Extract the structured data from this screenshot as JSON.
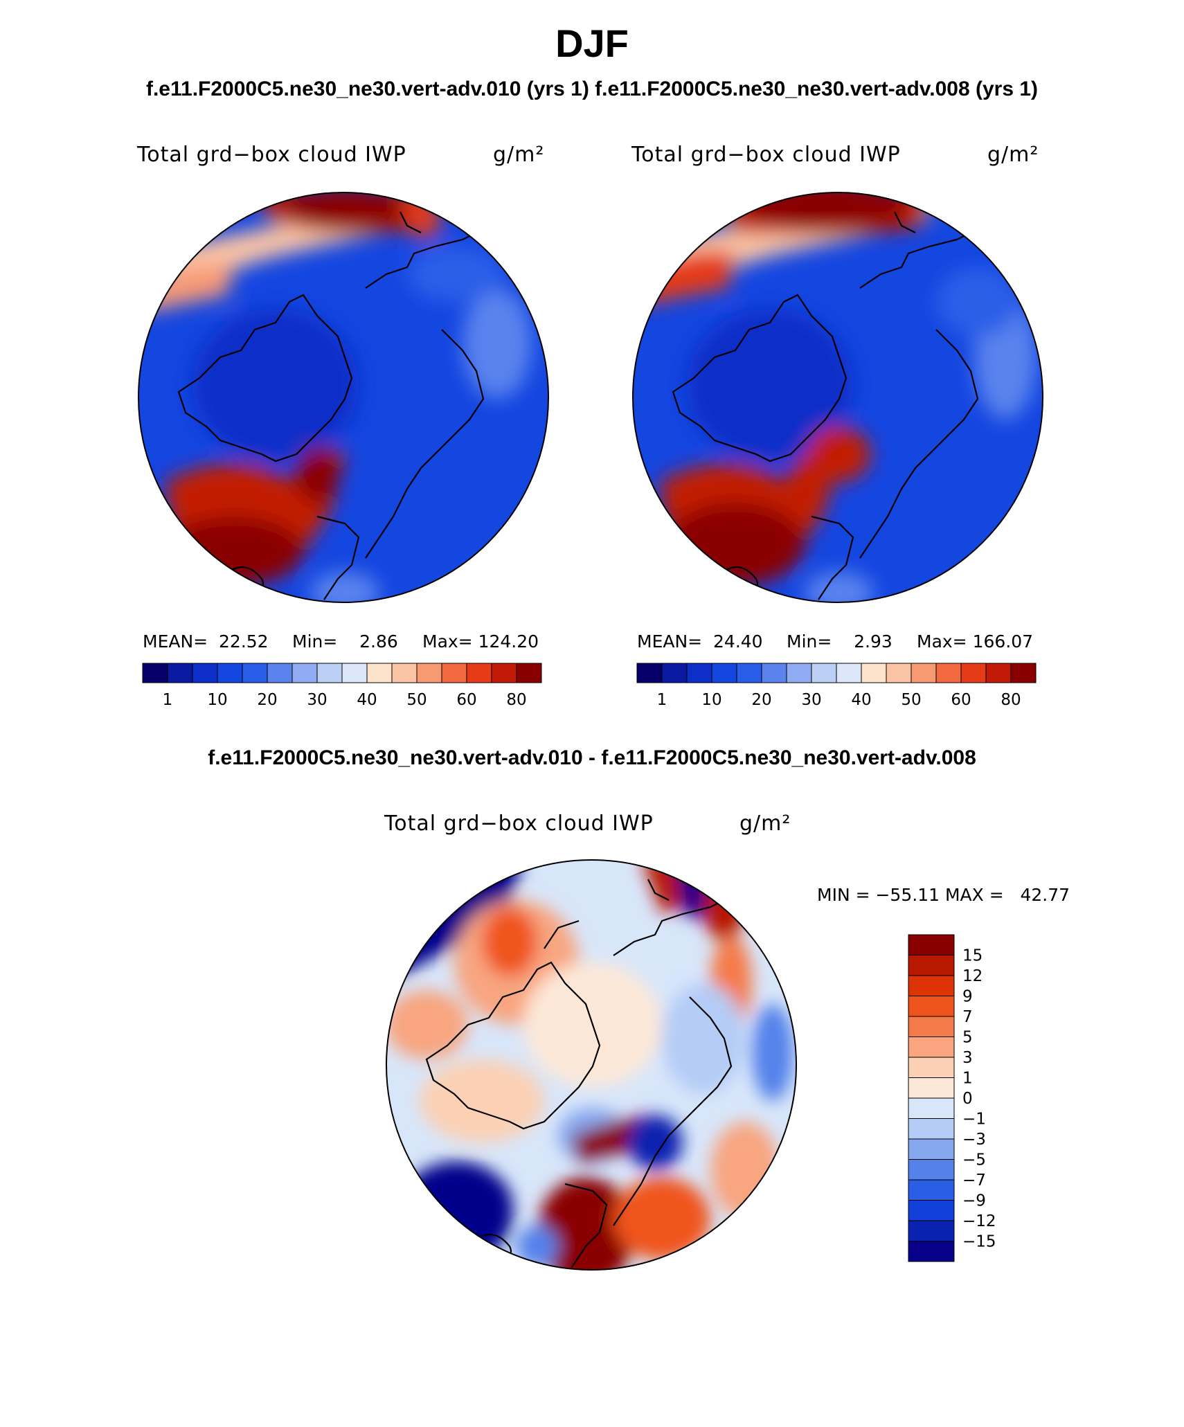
{
  "title": "DJF",
  "cases_title": "f.e11.F2000C5.ne30_ne30.vert-adv.010 (yrs 1) f.e11.F2000C5.ne30_ne30.vert-adv.008 (yrs 1)",
  "diff_title": "f.e11.F2000C5.ne30_ne30.vert-adv.010 - f.e11.F2000C5.ne30_ne30.vert-adv.008",
  "panels": [
    {
      "variable": "Total grd−box cloud IWP",
      "units": "g/m²",
      "mean": "MEAN=  22.52",
      "min": "Min=    2.86",
      "max": "Max= 124.20"
    },
    {
      "variable": "Total grd−box cloud IWP",
      "units": "g/m²",
      "mean": "MEAN=  24.40",
      "min": "Min=    2.93",
      "max": "Max= 166.07"
    }
  ],
  "diff_panel": {
    "variable": "Total grd−box cloud IWP",
    "units": "g/m²",
    "minmax": "MIN = −55.11 MAX =   42.77"
  },
  "colorbar_labels": [
    "1",
    "10",
    "20",
    "30",
    "40",
    "50",
    "60",
    "80"
  ],
  "colorbar_colors": [
    "#08006a",
    "#0a1aa0",
    "#0b2fc8",
    "#1446e0",
    "#2a5ee8",
    "#5a83ee",
    "#8fabf2",
    "#bcd0f6",
    "#dce8fa",
    "#fde3cc",
    "#fbc4a4",
    "#f79a74",
    "#f2683f",
    "#e53b17",
    "#c21a06",
    "#8a0000"
  ],
  "diff_labels": [
    "15",
    "12",
    "9",
    "7",
    "5",
    "3",
    "1",
    "0",
    "−1",
    "−3",
    "−5",
    "−7",
    "−9",
    "−12",
    "−15"
  ],
  "diff_colors": [
    "#8a0000",
    "#b81800",
    "#dc3406",
    "#f0541e",
    "#f57a4a",
    "#f8a580",
    "#fbd0b4",
    "#fde8d8",
    "#d8e6fa",
    "#b4ccf6",
    "#86a8ef",
    "#5482ea",
    "#2a5ee6",
    "#1240d8",
    "#0a22b0",
    "#06008a"
  ]
}
